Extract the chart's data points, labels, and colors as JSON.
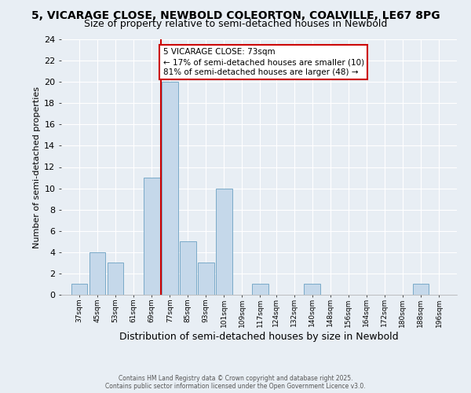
{
  "title1": "5, VICARAGE CLOSE, NEWBOLD COLEORTON, COALVILLE, LE67 8PG",
  "title2": "Size of property relative to semi-detached houses in Newbold",
  "xlabel": "Distribution of semi-detached houses by size in Newbold",
  "ylabel": "Number of semi-detached properties",
  "annotation_title": "5 VICARAGE CLOSE: 73sqm",
  "annotation_line1": "← 17% of semi-detached houses are smaller (10)",
  "annotation_line2": "81% of semi-detached houses are larger (48) →",
  "footer1": "Contains HM Land Registry data © Crown copyright and database right 2025.",
  "footer2": "Contains public sector information licensed under the Open Government Licence v3.0.",
  "property_size": 73,
  "bin_centers": [
    37,
    45,
    53,
    61,
    69,
    77,
    85,
    93,
    101,
    109,
    117,
    124,
    132,
    140,
    148,
    156,
    164,
    172,
    180,
    188,
    196
  ],
  "bin_labels": [
    "37sqm",
    "45sqm",
    "53sqm",
    "61sqm",
    "69sqm",
    "77sqm",
    "85sqm",
    "93sqm",
    "101sqm",
    "109sqm",
    "117sqm",
    "124sqm",
    "132sqm",
    "140sqm",
    "148sqm",
    "156sqm",
    "164sqm",
    "172sqm",
    "180sqm",
    "188sqm",
    "196sqm"
  ],
  "counts": [
    1,
    4,
    3,
    0,
    11,
    20,
    5,
    3,
    10,
    0,
    1,
    0,
    0,
    1,
    0,
    0,
    0,
    0,
    0,
    1,
    0
  ],
  "bar_color": "#c5d8ea",
  "bar_edge_color": "#7aaac8",
  "vline_color": "#cc0000",
  "ylim": [
    0,
    24
  ],
  "yticks": [
    0,
    2,
    4,
    6,
    8,
    10,
    12,
    14,
    16,
    18,
    20,
    22,
    24
  ],
  "bg_color": "#e8eef4",
  "grid_color": "#ffffff",
  "title_fontsize": 10,
  "subtitle_fontsize": 9,
  "annot_fontsize": 7.5,
  "ylabel_fontsize": 8,
  "xlabel_fontsize": 9
}
